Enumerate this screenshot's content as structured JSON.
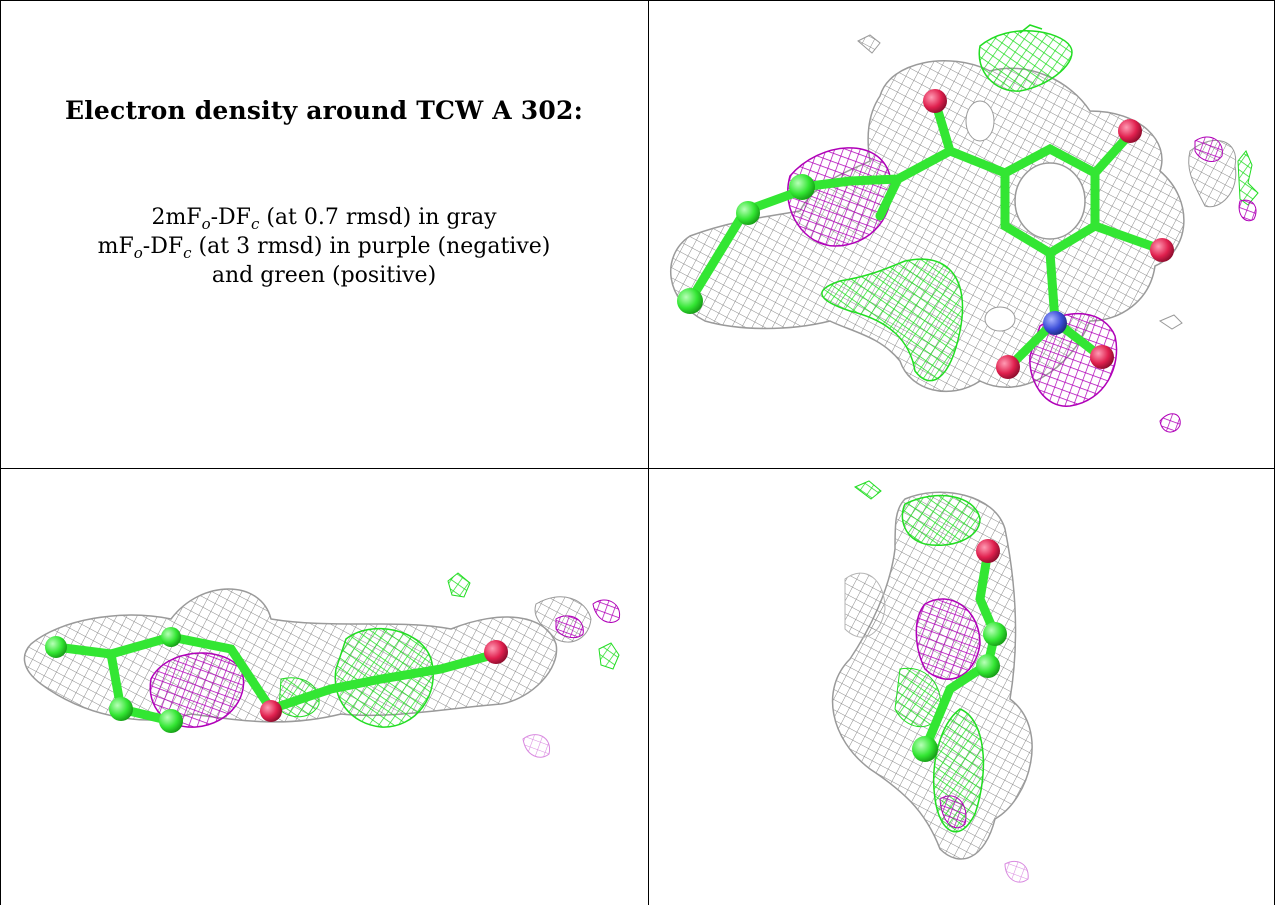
{
  "caption": {
    "title": "Electron density around TCW A 302:",
    "line1": {
      "pre": "2mF",
      "sub1": "o",
      "mid": "-DF",
      "sub2": "c",
      "post": " (at 0.7 rmsd) in gray"
    },
    "line2": {
      "pre": "mF",
      "sub1": "o",
      "mid": "-DF",
      "sub2": "c",
      "post": " (at 3 rmsd) in purple (negative)"
    },
    "line3": "and green (positive)"
  },
  "colors": {
    "map_2fofc": "#8a8a8a",
    "map_negative": "#b000b8",
    "map_positive": "#22dd22",
    "carbon_atom": "#33e633",
    "oxygen_atom": "#e0204e",
    "nitrogen_atom": "#3c4ed8",
    "border": "#000000"
  }
}
